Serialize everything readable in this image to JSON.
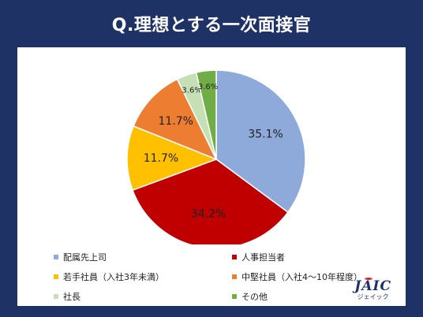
{
  "title": "Q.理想とする一次面接官",
  "chart_data": {
    "type": "pie",
    "title": "Q.理想とする一次面接官",
    "start_angle_deg": 0,
    "direction": "clockwise",
    "slices": [
      {
        "label": "配属先上司",
        "value": 35.1,
        "value_label": "35.1%",
        "color": "#8eaadb"
      },
      {
        "label": "人事担当者",
        "value": 34.2,
        "value_label": "34.2%",
        "color": "#c00000"
      },
      {
        "label": "若手社員（入社3年未満）",
        "value": 11.7,
        "value_label": "11.7%",
        "color": "#ffc000"
      },
      {
        "label": "中堅社員（入社4～10年程度）",
        "value": 11.7,
        "value_label": "11.7%",
        "color": "#ed7d31"
      },
      {
        "label": "社長",
        "value": 3.6,
        "value_label": "3.6%",
        "color": "#c5e0b4"
      },
      {
        "label": "その他",
        "value": 3.6,
        "value_label": "3.6%",
        "color": "#70ad47"
      }
    ],
    "legend_position": "bottom"
  },
  "logo": {
    "main": "JAIC",
    "sub": "ジェイック"
  }
}
